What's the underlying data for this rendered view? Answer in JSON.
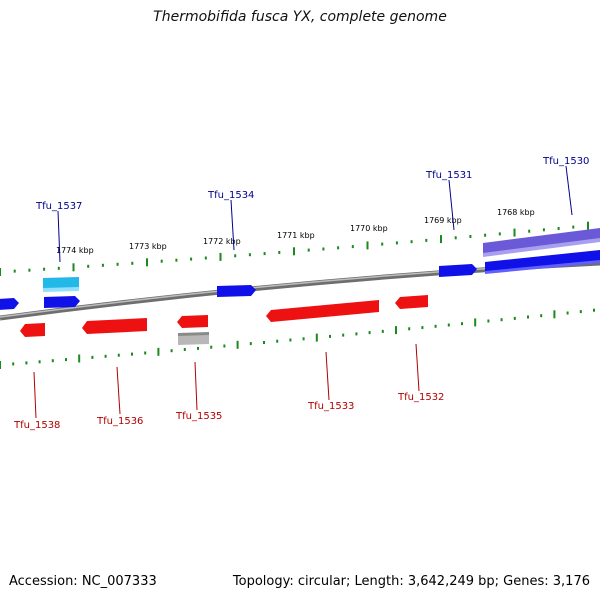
{
  "title": "Thermobifida fusca YX, complete genome",
  "footer": {
    "accession": "Accession: NC_007333",
    "summary": "Topology: circular; Length: 3,642,249 bp; Genes: 3,176"
  },
  "colors": {
    "forward_gene": "#1010e8",
    "reverse_gene": "#ee1111",
    "cyan_feature": "#22b8e8",
    "purple_feature": "#6a5ad8",
    "grey_feature": "#b8b8b8",
    "backbone": "#808080",
    "tick": "#1a8a1a",
    "forward_label": "#00008b",
    "reverse_label": "#b00000"
  },
  "kbp_labels": [
    "1774 kbp",
    "1773 kbp",
    "1772 kbp",
    "1771 kbp",
    "1770 kbp",
    "1769 kbp",
    "1768 kbp"
  ],
  "gene_labels": {
    "forward": [
      "Tfu_1537",
      "Tfu_1534",
      "Tfu_1531",
      "Tfu_1530"
    ],
    "reverse": [
      "Tfu_1538",
      "Tfu_1536",
      "Tfu_1535",
      "Tfu_1533",
      "Tfu_1532"
    ]
  }
}
